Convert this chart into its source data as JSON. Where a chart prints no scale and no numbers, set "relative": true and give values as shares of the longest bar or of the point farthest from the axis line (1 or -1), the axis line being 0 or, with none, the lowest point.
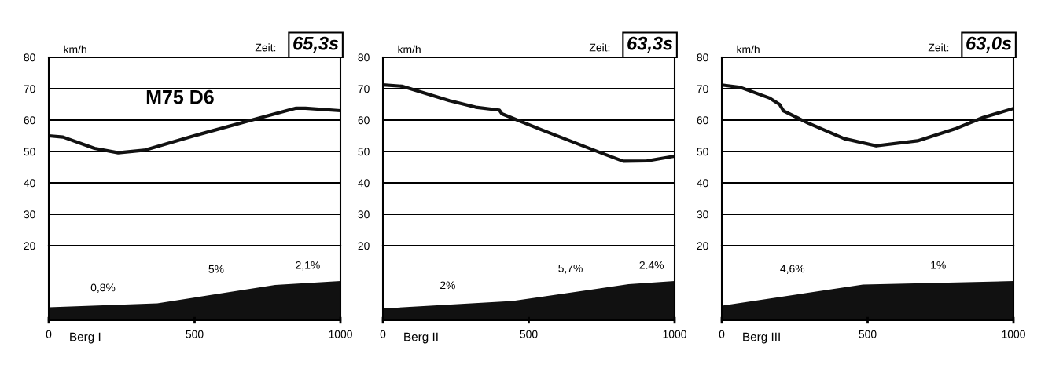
{
  "chart_data": [
    {
      "type": "line",
      "x": [
        0,
        49,
        157,
        238,
        327,
        498,
        695,
        848,
        880,
        1000
      ],
      "values": [
        55,
        54.6,
        51,
        49.6,
        50.4,
        55,
        60,
        63.8,
        63.8,
        63
      ],
      "color": "#111111",
      "xlim": [
        0,
        1000
      ],
      "ylim": [
        20,
        80
      ],
      "yticks": [
        20,
        30,
        40,
        50,
        60,
        70,
        80
      ],
      "grid": "y",
      "tick_labels": "y",
      "ylabel": "km/h",
      "annotations": [
        "M75 D6",
        "Zeit:",
        "65,3s"
      ]
    },
    {
      "type": "area",
      "relative": true,
      "x": [
        0,
        372,
        776,
        1000
      ],
      "values": [
        0.33,
        0.43,
        0.9,
        1
      ],
      "color": "#111111",
      "xlim": [
        0,
        1000
      ],
      "xticks": [
        0,
        500,
        1000
      ],
      "tick_labels": "x",
      "xlabel": "Berg I",
      "annotations": [
        "0,8%",
        "5%",
        "2,1%"
      ]
    },
    {
      "type": "line",
      "x": [
        0,
        65,
        228,
        318,
        399,
        408,
        544,
        752,
        824,
        905,
        1000
      ],
      "values": [
        71.2,
        70.8,
        66.2,
        64.1,
        63.2,
        62,
        56.9,
        49.4,
        46.9,
        47,
        48.5
      ],
      "color": "#111111",
      "xlim": [
        0,
        1000
      ],
      "ylim": [
        20,
        80
      ],
      "yticks": [
        20,
        30,
        40,
        50,
        60,
        70,
        80
      ],
      "grid": "y",
      "tick_labels": "y",
      "ylabel": "km/h",
      "annotations": [
        "Zeit:",
        "63,3s"
      ]
    },
    {
      "type": "area",
      "relative": true,
      "x": [
        0,
        444,
        842,
        1000
      ],
      "values": [
        0.3,
        0.49,
        0.92,
        1
      ],
      "color": "#111111",
      "xlim": [
        0,
        1000
      ],
      "xticks": [
        0,
        500,
        1000
      ],
      "tick_labels": "x",
      "xlabel": "Berg II",
      "annotations": [
        "2%",
        "5,7%",
        "2.4%"
      ]
    },
    {
      "type": "line",
      "x": [
        0,
        64,
        162,
        198,
        212,
        295,
        420,
        529,
        671,
        805,
        895,
        1000
      ],
      "values": [
        71.2,
        70.4,
        67.1,
        65,
        62.9,
        59.1,
        54.1,
        51.8,
        53.4,
        57.4,
        60.8,
        63.7
      ],
      "color": "#111111",
      "xlim": [
        0,
        1000
      ],
      "ylim": [
        20,
        80
      ],
      "yticks": [
        20,
        30,
        40,
        50,
        60,
        70,
        80
      ],
      "grid": "y",
      "tick_labels": "y",
      "ylabel": "km/h",
      "annotations": [
        "Zeit:",
        "63,0s"
      ]
    },
    {
      "type": "area",
      "relative": true,
      "x": [
        0,
        484,
        1000
      ],
      "values": [
        0.37,
        0.91,
        1
      ],
      "color": "#111111",
      "xlim": [
        0,
        1000
      ],
      "xticks": [
        0,
        500,
        1000
      ],
      "tick_labels": "x",
      "xlabel": "Berg III",
      "annotations": [
        "4,6%",
        "1%"
      ]
    }
  ]
}
